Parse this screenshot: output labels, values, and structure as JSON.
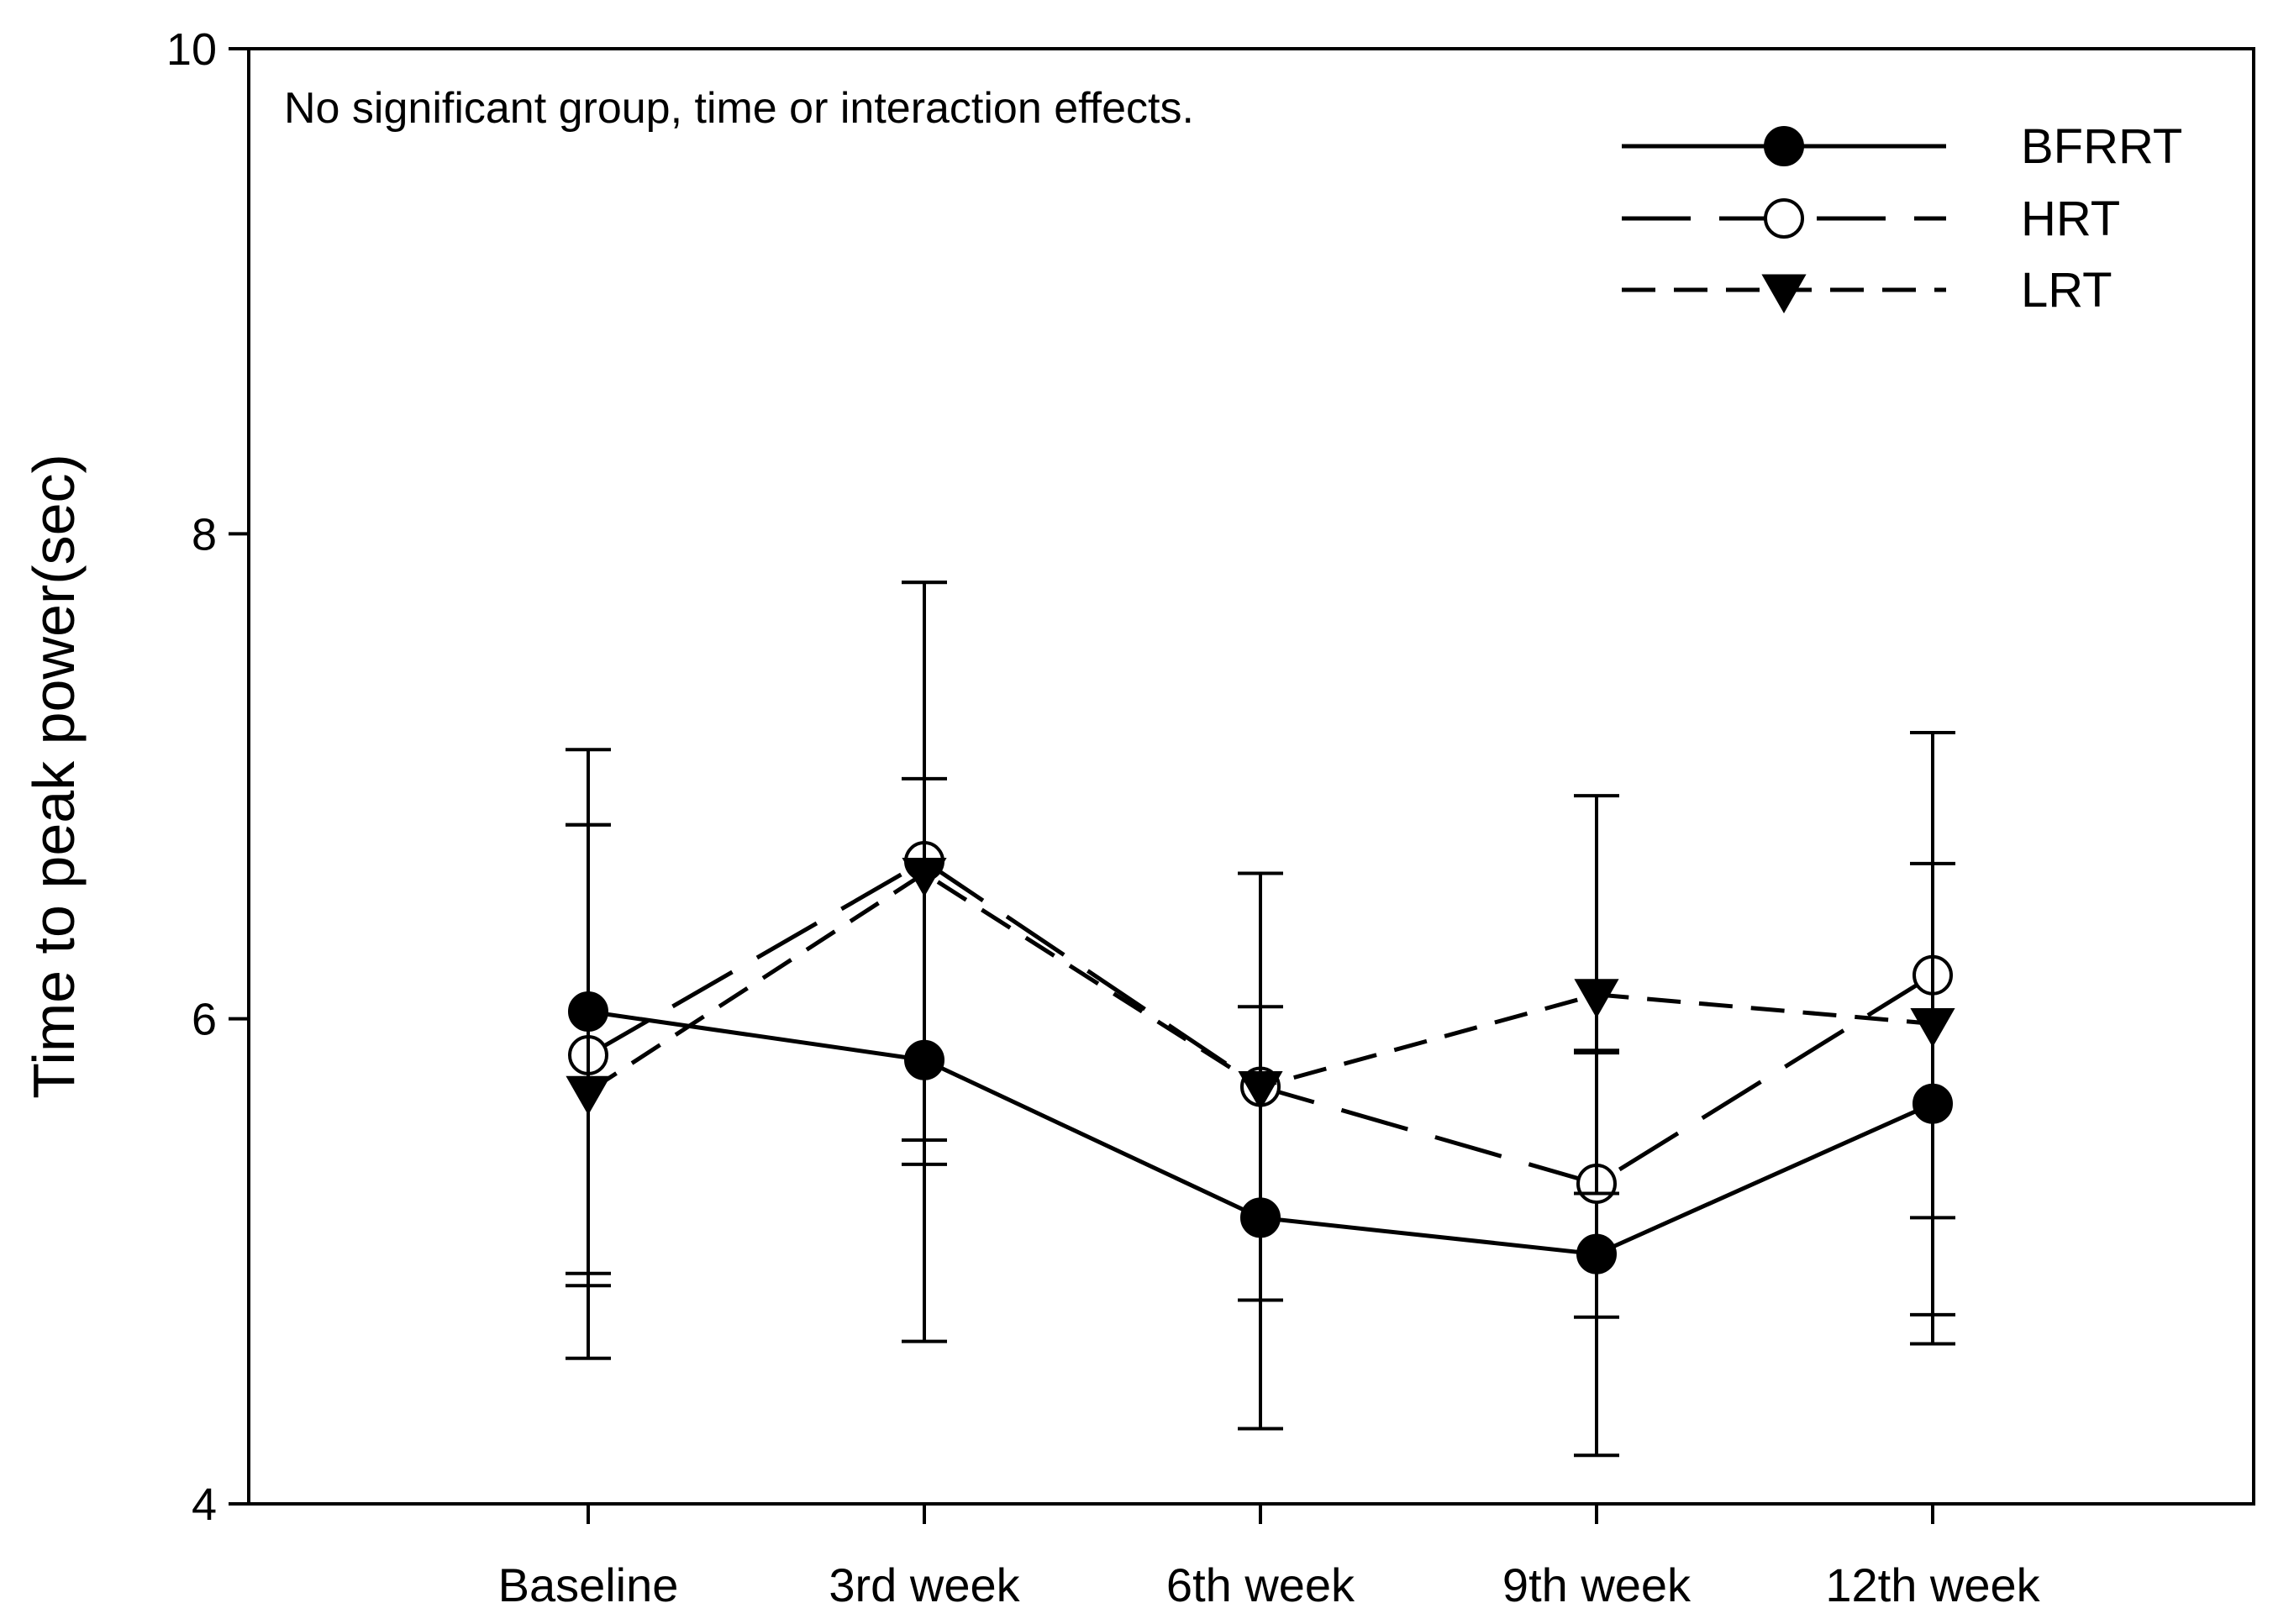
{
  "chart_data": {
    "type": "line",
    "title": "",
    "xlabel": "",
    "ylabel": "Time to peak power(sec)",
    "annotation": "No significant group, time or interaction effects.",
    "categories": [
      "Baseline",
      "3rd week",
      "6th week",
      "9th week",
      "12th week"
    ],
    "ylim": [
      4,
      10
    ],
    "yticks": [
      4,
      6,
      8,
      10
    ],
    "grid": false,
    "legend_position": "top-right",
    "series": [
      {
        "name": "BFRRT",
        "marker": "filled-circle",
        "line_style": "solid",
        "values": [
          6.03,
          5.83,
          5.18,
          5.03,
          5.65
        ],
        "error": [
          1.08,
          1.16,
          0.87,
          0.83,
          0.99
        ]
      },
      {
        "name": "HRT",
        "marker": "open-circle",
        "line_style": "long-dash",
        "values": [
          5.85,
          6.65,
          5.72,
          5.32,
          6.18
        ],
        "error": [
          0.95,
          1.15,
          0.88,
          0.55,
          1.0
        ]
      },
      {
        "name": "LRT",
        "marker": "filled-triangle-down",
        "line_style": "short-dash",
        "values": [
          5.7,
          6.6,
          5.72,
          6.1,
          5.98
        ],
        "error": [
          1.1,
          1.2,
          0.88,
          0.82,
          1.2
        ]
      }
    ],
    "colors": {
      "line": "#000000",
      "background": "#ffffff"
    }
  }
}
